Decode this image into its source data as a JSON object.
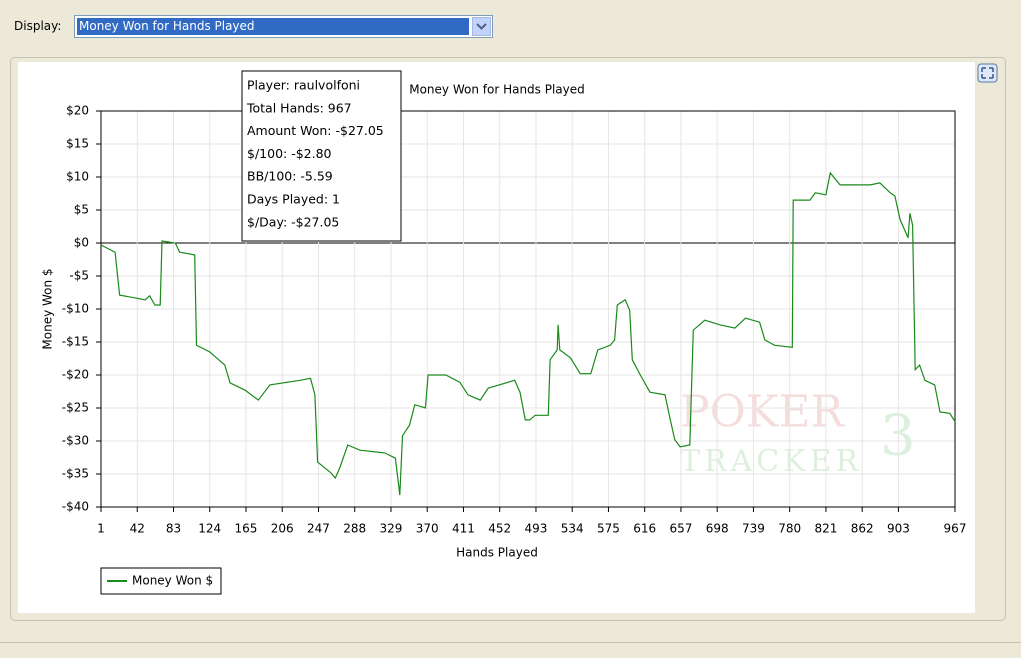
{
  "display_label": "Display:",
  "display_value": "Money Won for Hands Played",
  "tooltip": [
    "Player: raulvolfoni",
    "Total Hands: 967",
    "Amount Won: -$27.05",
    "$/100: -$2.80",
    "BB/100: -5.59",
    "Days Played: 1",
    "$/Day: -$27.05"
  ],
  "watermark": [
    "POKER",
    "TRACKER",
    "3"
  ],
  "chart_data": {
    "type": "line",
    "title": "Money Won for Hands Played",
    "x_label": "Hands Played",
    "y_label": "Money Won $",
    "x": [
      1,
      17,
      22,
      39,
      51,
      56,
      62,
      68,
      70,
      85,
      90,
      107,
      109,
      124,
      141,
      147,
      164,
      179,
      192,
      226,
      238,
      243,
      246,
      260,
      266,
      271,
      280,
      294,
      322,
      334,
      339,
      342,
      350,
      356,
      368,
      371,
      391,
      407,
      416,
      430,
      439,
      469,
      475,
      481,
      486,
      492,
      507,
      509,
      517,
      518,
      520,
      532,
      543,
      555,
      563,
      577,
      582,
      585,
      594,
      599,
      602,
      611,
      622,
      639,
      645,
      650,
      656,
      667,
      671,
      684,
      701,
      718,
      730,
      746,
      752,
      763,
      783,
      784,
      803,
      809,
      821,
      826,
      837,
      871,
      882,
      893,
      899,
      905,
      914,
      916,
      919,
      922,
      927,
      933,
      944,
      950,
      961,
      967
    ],
    "series": [
      {
        "name": "Money Won $",
        "color": "#1a8a1a",
        "values": [
          -0.3,
          -1.4,
          -7.9,
          -8.3,
          -8.6,
          -8.0,
          -9.4,
          -9.4,
          0.3,
          0,
          -1.4,
          -1.8,
          -15.5,
          -16.5,
          -18.5,
          -21.2,
          -22.3,
          -23.8,
          -21.5,
          -20.8,
          -20.5,
          -23.0,
          -33.2,
          -34.7,
          -35.6,
          -34.1,
          -30.6,
          -31.4,
          -31.8,
          -32.6,
          -38.2,
          -29.2,
          -27.6,
          -24.5,
          -25.0,
          -20.0,
          -20.0,
          -21.1,
          -23.0,
          -23.8,
          -22.0,
          -20.8,
          -22.6,
          -26.8,
          -26.8,
          -26.1,
          -26.1,
          -17.7,
          -16.2,
          -12.4,
          -16.2,
          -17.4,
          -19.8,
          -19.8,
          -16.2,
          -15.5,
          -14.7,
          -9.4,
          -8.6,
          -10.2,
          -17.7,
          -20.0,
          -22.6,
          -23.0,
          -26.8,
          -29.8,
          -30.9,
          -30.6,
          -13.2,
          -11.7,
          -12.4,
          -12.9,
          -11.4,
          -12.0,
          -14.7,
          -15.5,
          -15.8,
          6.5,
          6.5,
          7.6,
          7.3,
          10.6,
          8.8,
          8.8,
          9.1,
          7.7,
          7.1,
          3.5,
          0.8,
          4.5,
          2.7,
          -19.2,
          -18.5,
          -20.8,
          -21.5,
          -25.6,
          -25.8,
          -27.05
        ]
      }
    ],
    "xlim": [
      1,
      967
    ],
    "ylim": [
      -40,
      20
    ],
    "xticks": [
      1,
      42,
      83,
      124,
      165,
      206,
      247,
      288,
      329,
      370,
      411,
      452,
      493,
      534,
      575,
      616,
      657,
      698,
      739,
      780,
      821,
      862,
      903,
      967
    ],
    "yticks": [
      {
        "value": 20,
        "label": "$20"
      },
      {
        "value": 15,
        "label": "$15"
      },
      {
        "value": 10,
        "label": "$10"
      },
      {
        "value": 5,
        "label": "$5"
      },
      {
        "value": 0,
        "label": "$0"
      },
      {
        "value": -5,
        "label": "-$5"
      },
      {
        "value": -10,
        "label": "-$10"
      },
      {
        "value": -15,
        "label": "-$15"
      },
      {
        "value": -20,
        "label": "-$20"
      },
      {
        "value": -25,
        "label": "-$25"
      },
      {
        "value": -30,
        "label": "-$30"
      },
      {
        "value": -35,
        "label": "-$35"
      },
      {
        "value": -40,
        "label": "-$40"
      }
    ],
    "grid": true,
    "legend": "bottom-left"
  }
}
